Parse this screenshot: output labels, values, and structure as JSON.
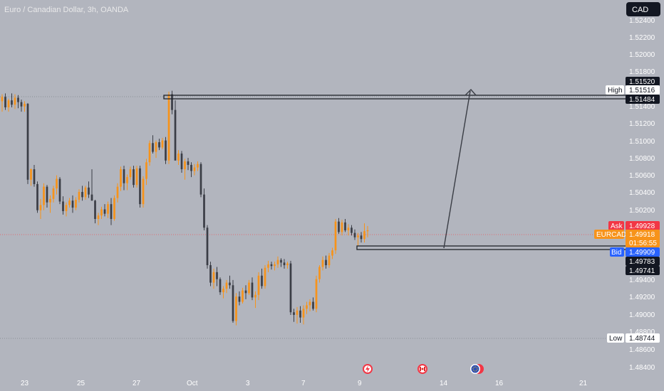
{
  "header": {
    "symbol_title": "Euro / Canadian Dollar, 3h, OANDA",
    "currency_button": "CAD"
  },
  "colors": {
    "background": "#b2b5be",
    "up_candle": "#f7931a",
    "down_candle": "#3a3d45",
    "dark_label": "#131722",
    "ask_red": "#f23645",
    "bid_blue": "#2962ff",
    "current_orange": "#f7931a"
  },
  "chart_data": {
    "type": "candlestick",
    "title": "Euro / Canadian Dollar, 3h, OANDA",
    "y_axis": {
      "range": [
        1.4833,
        1.5252
      ],
      "ticks": [
        "1.52400",
        "1.52200",
        "1.52000",
        "1.51800",
        "1.51400",
        "1.51200",
        "1.51000",
        "1.50800",
        "1.50600",
        "1.50400",
        "1.50200",
        "1.49400",
        "1.49200",
        "1.49000",
        "1.48800",
        "1.48600",
        "1.48400"
      ]
    },
    "x_axis": {
      "ticks": [
        "23",
        "25",
        "27",
        "Oct",
        "3",
        "7",
        "9",
        "14",
        "16",
        "21"
      ]
    },
    "price_labels": [
      {
        "key": "high_line_top",
        "text": "1.51520",
        "style": "dark",
        "value": 1.5152
      },
      {
        "key": "high",
        "tag": "High",
        "text": "1.51516",
        "style": "white",
        "value": 1.51516
      },
      {
        "key": "high_line_bottom",
        "text": "1.51484",
        "style": "dark",
        "value": 1.51484
      },
      {
        "key": "ask",
        "tag": "Ask",
        "text": "1.49928",
        "style": "red",
        "value": 1.49928
      },
      {
        "key": "current",
        "tag": "EURCAD",
        "text": "1.49918",
        "countdown": "01:56:55",
        "style": "orange",
        "value": 1.49918
      },
      {
        "key": "bid",
        "tag": "Bid",
        "text": "1.49909",
        "style": "blue",
        "value": 1.49909
      },
      {
        "key": "box_top",
        "text": "1.49783",
        "style": "dark",
        "value": 1.49783
      },
      {
        "key": "box_bottom",
        "text": "1.49741",
        "style": "dark",
        "value": 1.49741
      },
      {
        "key": "low",
        "tag": "Low",
        "text": "1.48744",
        "style": "white",
        "value": 1.48744
      }
    ],
    "annotations": [
      {
        "type": "zone",
        "from_value": 1.5152,
        "to_value": 1.51484,
        "label": "resistance zone"
      },
      {
        "type": "zone",
        "from_value": 1.49783,
        "to_value": 1.49741,
        "label": "support zone"
      },
      {
        "type": "arrow",
        "from_value": 1.4974,
        "to_value": 1.5157,
        "label": "projected up move"
      }
    ],
    "events": [
      {
        "name": "lightning-event-icon"
      },
      {
        "name": "canada-flag-icon"
      },
      {
        "name": "eu-flag-icon"
      }
    ],
    "series": [
      [
        1.514,
        1.5148,
        1.5128,
        1.5145
      ],
      [
        1.5145,
        1.5149,
        1.513,
        1.5133
      ],
      [
        1.5133,
        1.5143,
        1.5128,
        1.5141
      ],
      [
        1.5141,
        1.5149,
        1.5133,
        1.5136
      ],
      [
        1.5136,
        1.5148,
        1.5131,
        1.5144
      ],
      [
        1.5144,
        1.5147,
        1.5132,
        1.5139
      ],
      [
        1.5139,
        1.5142,
        1.5128,
        1.5134
      ],
      [
        1.5134,
        1.514,
        1.5128,
        1.5137
      ],
      [
        1.5137,
        1.5138,
        1.5045,
        1.505
      ],
      [
        1.505,
        1.5063,
        1.5043,
        1.5062
      ],
      [
        1.5062,
        1.5067,
        1.5042,
        1.5045
      ],
      [
        1.5045,
        1.5048,
        1.5012,
        1.5015
      ],
      [
        1.5015,
        1.5028,
        1.5005,
        1.5021
      ],
      [
        1.5021,
        1.5046,
        1.5015,
        1.5042
      ],
      [
        1.5042,
        1.5044,
        1.5018,
        1.5024
      ],
      [
        1.5024,
        1.5032,
        1.5012,
        1.5028
      ],
      [
        1.5028,
        1.5043,
        1.5024,
        1.504
      ],
      [
        1.504,
        1.5055,
        1.5033,
        1.5051
      ],
      [
        1.5051,
        1.5053,
        1.5022,
        1.5025
      ],
      [
        1.5025,
        1.5031,
        1.501,
        1.5014
      ],
      [
        1.5014,
        1.5024,
        1.5008,
        1.5021
      ],
      [
        1.5021,
        1.5029,
        1.5018,
        1.5026
      ],
      [
        1.5026,
        1.5032,
        1.5012,
        1.5018
      ],
      [
        1.5018,
        1.503,
        1.5015,
        1.5027
      ],
      [
        1.5027,
        1.5039,
        1.5024,
        1.5036
      ],
      [
        1.5036,
        1.5043,
        1.5026,
        1.503
      ],
      [
        1.503,
        1.5043,
        1.5027,
        1.5041
      ],
      [
        1.5041,
        1.5048,
        1.5029,
        1.5033
      ],
      [
        1.5033,
        1.5062,
        1.5026,
        1.5026
      ],
      [
        1.5026,
        1.5027,
        1.5,
        1.5005
      ],
      [
        1.5005,
        1.5012,
        1.4998,
        1.5009
      ],
      [
        1.5009,
        1.5019,
        1.5005,
        1.5016
      ],
      [
        1.5016,
        1.5022,
        1.5008,
        1.5011
      ],
      [
        1.5011,
        1.5025,
        1.5006,
        1.5022
      ],
      [
        1.5022,
        1.5029,
        1.4998,
        1.5005
      ],
      [
        1.5005,
        1.5032,
        1.5003,
        1.5029
      ],
      [
        1.5029,
        1.5046,
        1.5024,
        1.5042
      ],
      [
        1.5042,
        1.5065,
        1.5037,
        1.5062
      ],
      [
        1.5062,
        1.5066,
        1.5038,
        1.5046
      ],
      [
        1.5046,
        1.5056,
        1.5038,
        1.5053
      ],
      [
        1.5053,
        1.5065,
        1.505,
        1.5062
      ],
      [
        1.5062,
        1.5066,
        1.5041,
        1.5044
      ],
      [
        1.5044,
        1.5066,
        1.5041,
        1.5063
      ],
      [
        1.5063,
        1.5066,
        1.5018,
        1.5022
      ],
      [
        1.5022,
        1.5054,
        1.5018,
        1.5051
      ],
      [
        1.5051,
        1.5074,
        1.5044,
        1.507
      ],
      [
        1.507,
        1.5095,
        1.5066,
        1.5092
      ],
      [
        1.5092,
        1.5101,
        1.508,
        1.5082
      ],
      [
        1.5082,
        1.5095,
        1.5075,
        1.5093
      ],
      [
        1.5093,
        1.5097,
        1.5084,
        1.5087
      ],
      [
        1.5087,
        1.5098,
        1.5085,
        1.5095
      ],
      [
        1.5095,
        1.5099,
        1.5068,
        1.5072
      ],
      [
        1.5072,
        1.5151,
        1.5068,
        1.5148
      ],
      [
        1.5148,
        1.5152,
        1.5125,
        1.513
      ],
      [
        1.513,
        1.5141,
        1.5094,
        1.5072
      ],
      [
        1.5072,
        1.5084,
        1.5067,
        1.508
      ],
      [
        1.508,
        1.5083,
        1.5058,
        1.5062
      ],
      [
        1.5062,
        1.5074,
        1.505,
        1.5071
      ],
      [
        1.5071,
        1.5075,
        1.5061,
        1.5067
      ],
      [
        1.5067,
        1.507,
        1.5053,
        1.506
      ],
      [
        1.506,
        1.5068,
        1.5055,
        1.5064
      ],
      [
        1.5064,
        1.5071,
        1.506,
        1.5068
      ],
      [
        1.5068,
        1.507,
        1.503,
        1.5033
      ],
      [
        1.5033,
        1.504,
        1.4992,
        1.4995
      ],
      [
        1.4995,
        1.4998,
        1.4948,
        1.4952
      ],
      [
        1.4952,
        1.4956,
        1.4928,
        1.4932
      ],
      [
        1.4932,
        1.4948,
        1.4925,
        1.4944
      ],
      [
        1.4944,
        1.495,
        1.4928,
        1.4936
      ],
      [
        1.4936,
        1.4938,
        1.4918,
        1.4921
      ],
      [
        1.4921,
        1.4928,
        1.4914,
        1.4925
      ],
      [
        1.4925,
        1.4935,
        1.492,
        1.4932
      ],
      [
        1.4932,
        1.494,
        1.4925,
        1.4929
      ],
      [
        1.4929,
        1.4935,
        1.4886,
        1.4888
      ],
      [
        1.4888,
        1.492,
        1.4883,
        1.4916
      ],
      [
        1.4916,
        1.4922,
        1.4906,
        1.491
      ],
      [
        1.491,
        1.4926,
        1.4908,
        1.4923
      ],
      [
        1.4923,
        1.4929,
        1.4913,
        1.492
      ],
      [
        1.492,
        1.4935,
        1.4918,
        1.4932
      ],
      [
        1.4932,
        1.4938,
        1.4912,
        1.4915
      ],
      [
        1.4915,
        1.4922,
        1.4903,
        1.4918
      ],
      [
        1.4918,
        1.4944,
        1.4912,
        1.494
      ],
      [
        1.494,
        1.4948,
        1.4925,
        1.4928
      ],
      [
        1.4928,
        1.4952,
        1.4925,
        1.4949
      ],
      [
        1.4949,
        1.4957,
        1.4944,
        1.4953
      ],
      [
        1.4953,
        1.4956,
        1.4947,
        1.4951
      ],
      [
        1.4951,
        1.4956,
        1.4946,
        1.4953
      ],
      [
        1.4953,
        1.4962,
        1.4949,
        1.4958
      ],
      [
        1.4958,
        1.496,
        1.495,
        1.4955
      ],
      [
        1.4955,
        1.4959,
        1.4948,
        1.4952
      ],
      [
        1.4952,
        1.4956,
        1.4948,
        1.4954
      ],
      [
        1.4954,
        1.4957,
        1.4895,
        1.4898
      ],
      [
        1.4898,
        1.4902,
        1.4887,
        1.4895
      ],
      [
        1.4895,
        1.4904,
        1.4885,
        1.49
      ],
      [
        1.49,
        1.4905,
        1.4886,
        1.4892
      ],
      [
        1.4892,
        1.4906,
        1.4884,
        1.4902
      ],
      [
        1.4902,
        1.491,
        1.4896,
        1.4906
      ],
      [
        1.4906,
        1.4913,
        1.4899,
        1.491
      ],
      [
        1.491,
        1.4915,
        1.49,
        1.4902
      ],
      [
        1.4902,
        1.494,
        1.4898,
        1.4936
      ],
      [
        1.4936,
        1.4952,
        1.4932,
        1.495
      ],
      [
        1.495,
        1.4962,
        1.4946,
        1.4958
      ],
      [
        1.4958,
        1.4963,
        1.4948,
        1.4952
      ],
      [
        1.4952,
        1.4966,
        1.4949,
        1.4963
      ],
      [
        1.4963,
        1.4972,
        1.4959,
        1.4969
      ],
      [
        1.4969,
        1.5005,
        1.4965,
        1.5002
      ],
      [
        1.5002,
        1.5006,
        1.4988,
        1.499
      ],
      [
        1.499,
        1.5004,
        1.4986,
        1.5001
      ],
      [
        1.5001,
        1.5005,
        1.499,
        1.4992
      ],
      [
        1.4992,
        1.4999,
        1.4986,
        1.4995
      ],
      [
        1.4995,
        1.4998,
        1.4986,
        1.4989
      ],
      [
        1.4989,
        1.4993,
        1.4981,
        1.4984
      ],
      [
        1.4984,
        1.4989,
        1.4974,
        1.4986
      ],
      [
        1.4986,
        1.499,
        1.4978,
        1.4982
      ],
      [
        1.4982,
        1.5,
        1.4978,
        1.4991
      ],
      [
        1.4991,
        1.4997,
        1.4984,
        1.4992
      ]
    ]
  }
}
